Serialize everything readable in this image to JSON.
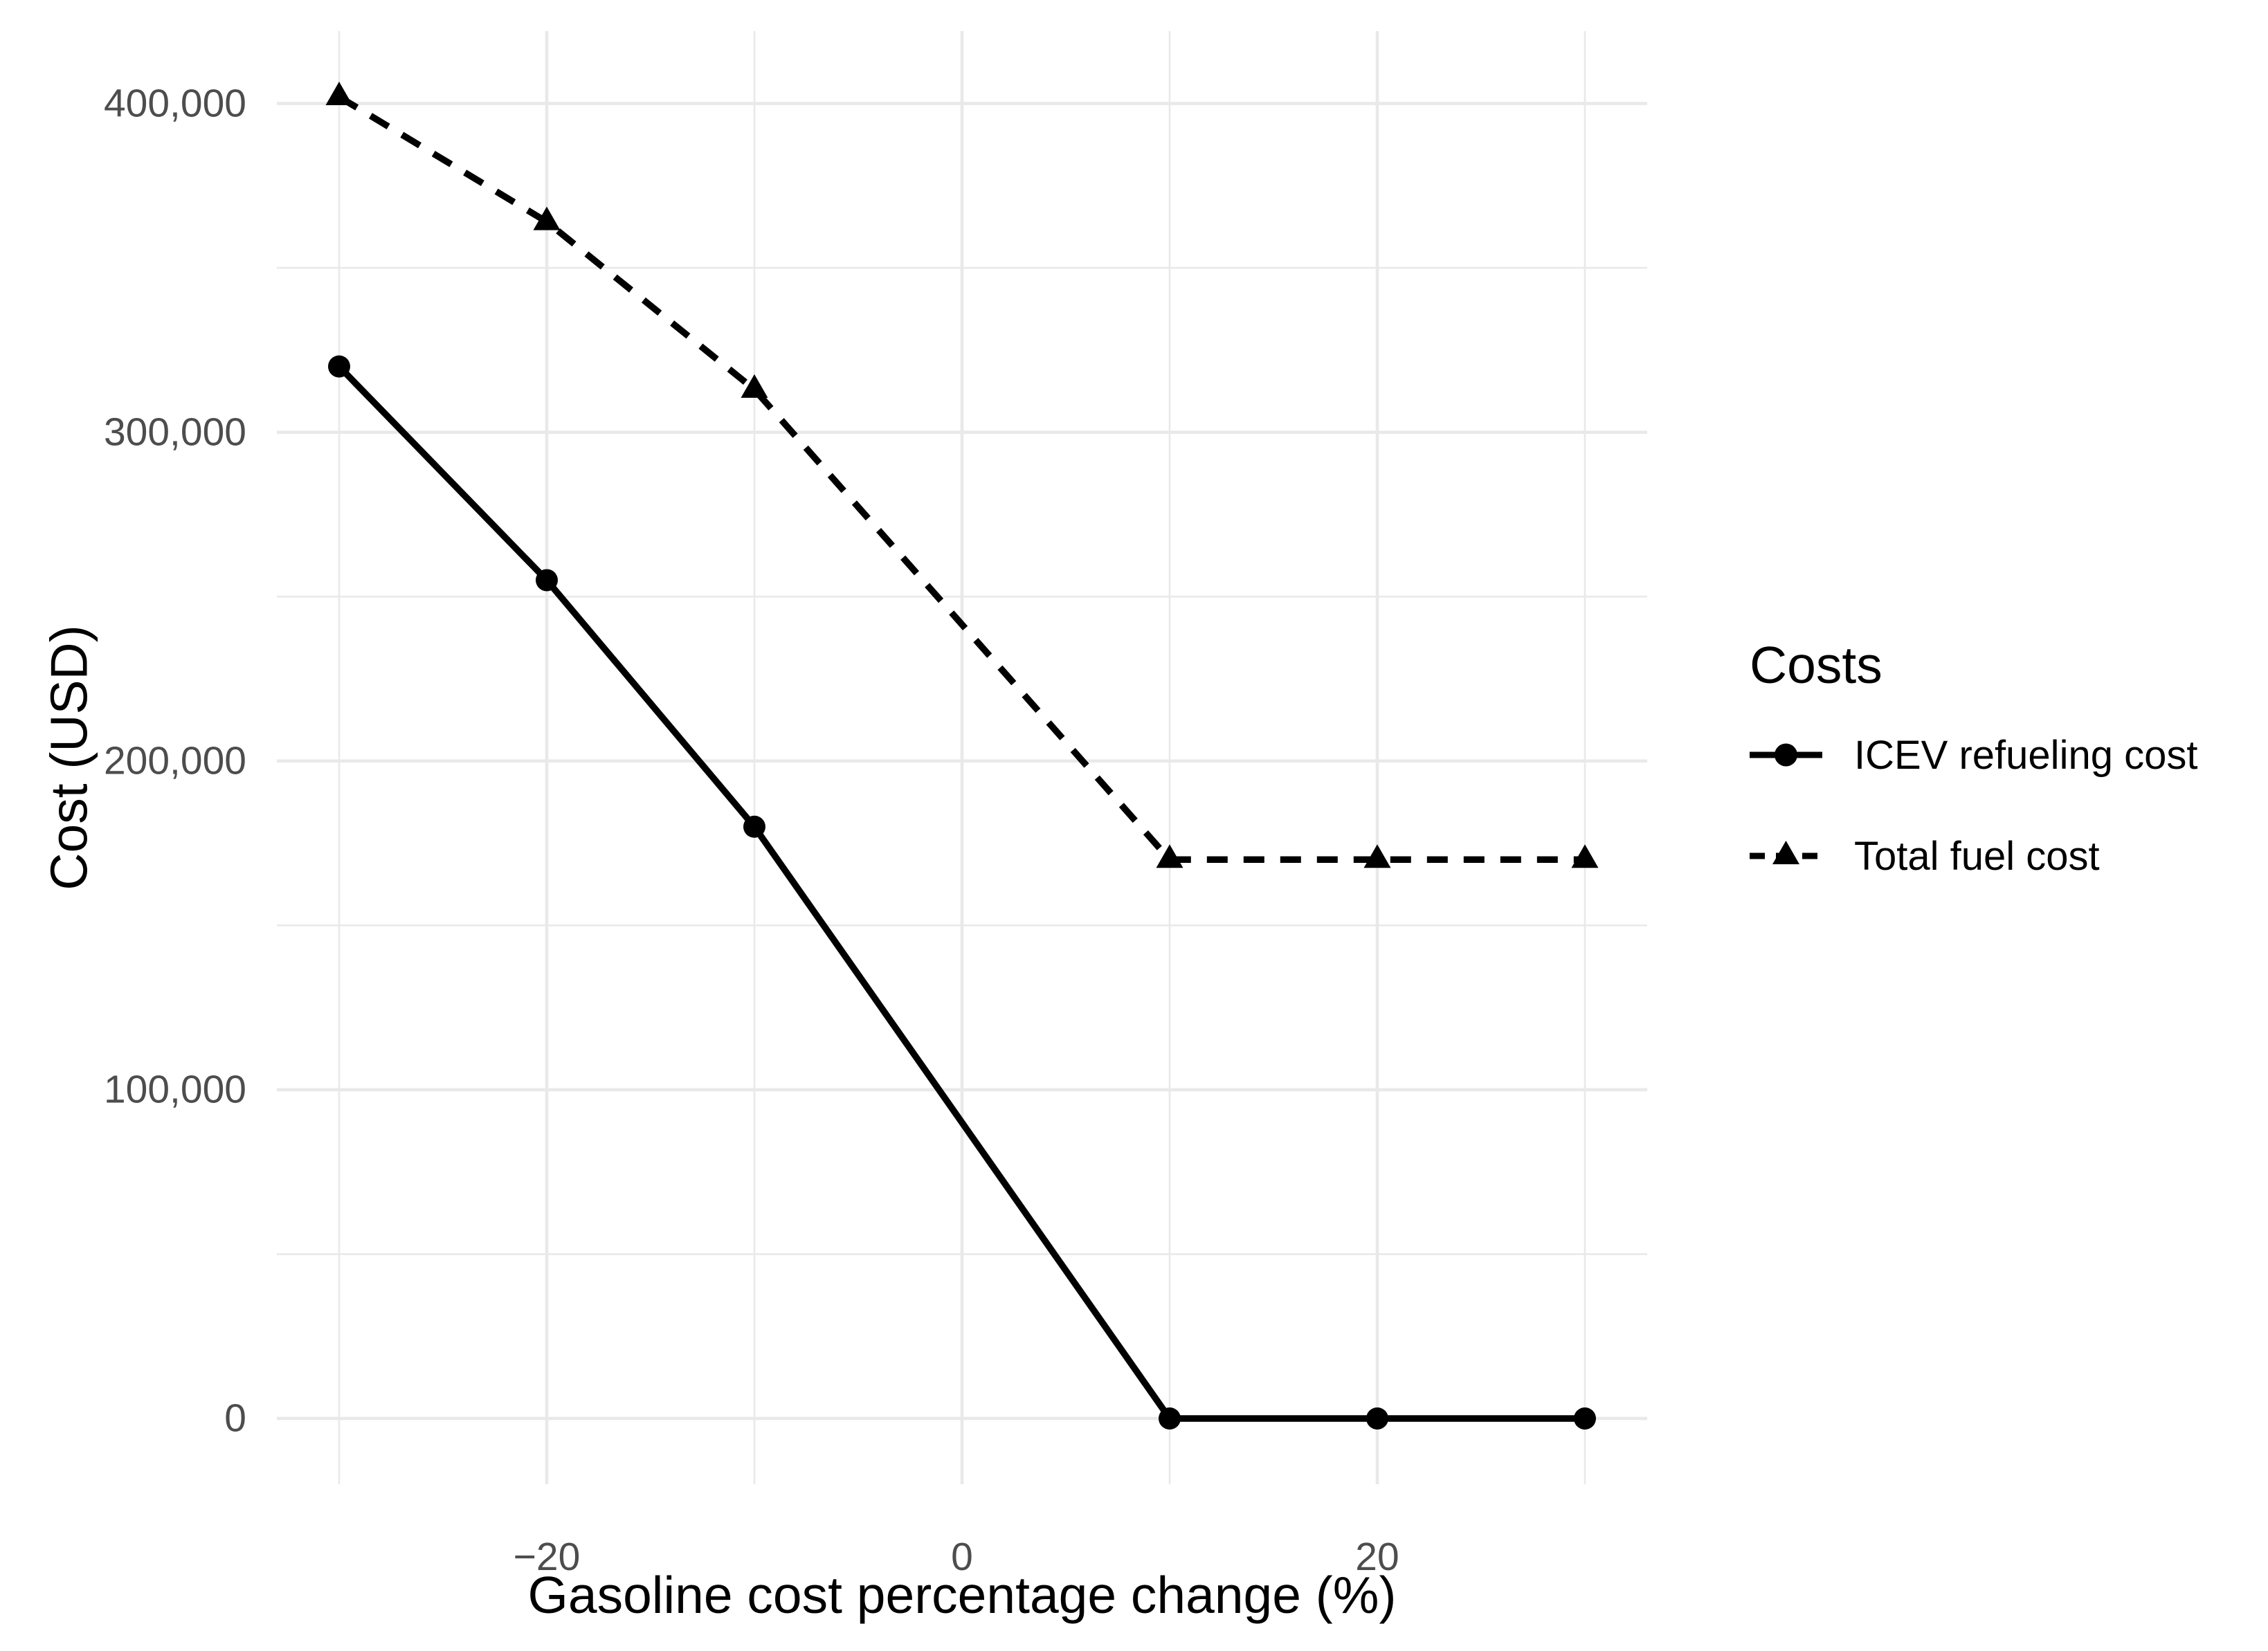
{
  "chart_data": {
    "type": "line",
    "xlabel": "Gasoline cost percentage change (%)",
    "ylabel": "Cost (USD)",
    "x": [
      -30,
      -20,
      -10,
      10,
      20,
      30
    ],
    "series": [
      {
        "name": "ICEV refueling cost",
        "marker": "circle",
        "linestyle": "solid",
        "color": "#000000",
        "values": [
          320000,
          255000,
          180000,
          0,
          0,
          0
        ]
      },
      {
        "name": "Total fuel cost",
        "marker": "triangle",
        "linestyle": "dashed",
        "color": "#000000",
        "values": [
          402000,
          364000,
          313000,
          170000,
          170000,
          170000
        ]
      }
    ],
    "xlim": [
      -33,
      33
    ],
    "ylim": [
      -20000,
      422000
    ],
    "x_ticks": [
      {
        "value": -20,
        "label": "−20"
      },
      {
        "value": 0,
        "label": "0"
      },
      {
        "value": 20,
        "label": "20"
      }
    ],
    "x_minor": [
      -30,
      -10,
      10,
      30
    ],
    "y_ticks": [
      {
        "value": 0,
        "label": "0"
      },
      {
        "value": 100000,
        "label": "100,000"
      },
      {
        "value": 200000,
        "label": "200,000"
      },
      {
        "value": 300000,
        "label": "300,000"
      },
      {
        "value": 400000,
        "label": "400,000"
      }
    ],
    "y_minor": [
      50000,
      150000,
      250000,
      350000
    ],
    "legend": {
      "title": "Costs",
      "position": "right"
    },
    "grid": true,
    "colors": {
      "grid": "#E9E9E9",
      "tick_label": "#4D4D4D",
      "text": "#000000",
      "series": "#000000",
      "background": "#FFFFFF"
    }
  }
}
